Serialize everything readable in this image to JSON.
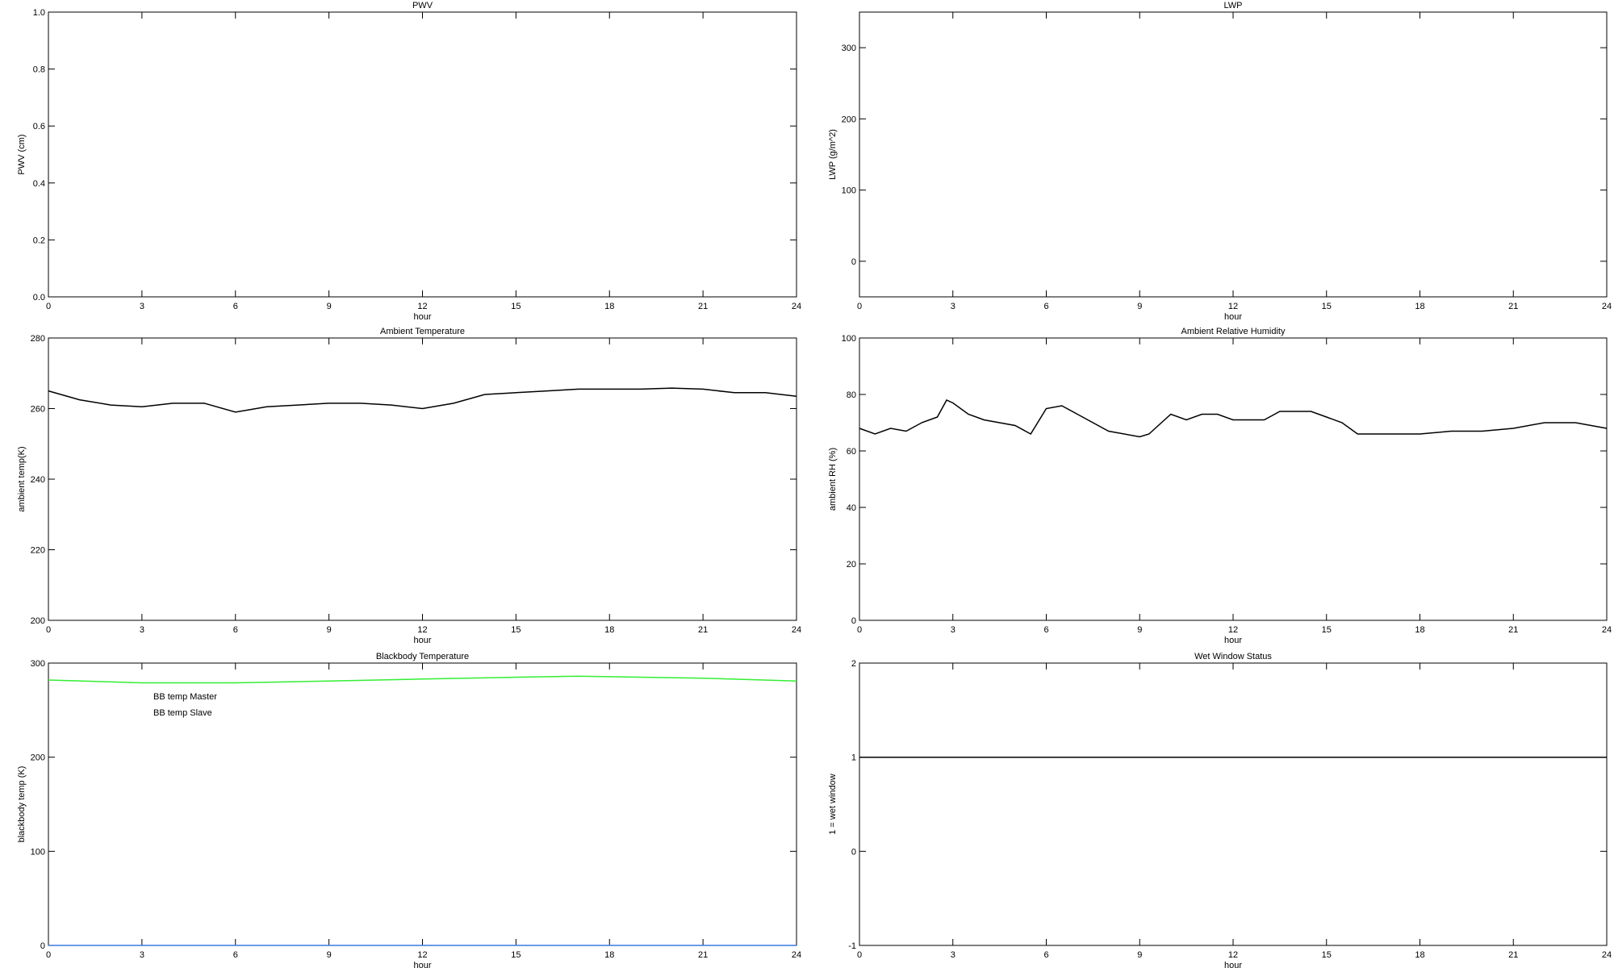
{
  "chart_data": [
    {
      "type": "line",
      "title": "PWV",
      "xlabel": "hour",
      "ylabel": "PWV (cm)",
      "xlim": [
        0,
        24
      ],
      "xticks": [
        0,
        3,
        6,
        9,
        12,
        15,
        18,
        21,
        24
      ],
      "ylim": [
        0,
        1
      ],
      "yticks": [
        {
          "value": 0,
          "label": "0.0"
        },
        0.2,
        0.4,
        0.6,
        0.8,
        {
          "value": 1,
          "label": "1.0"
        }
      ],
      "x": [],
      "series": []
    },
    {
      "type": "line",
      "title": "LWP",
      "xlabel": "hour",
      "ylabel": "LWP (g/m^2)",
      "xlim": [
        0,
        24
      ],
      "xticks": [
        0,
        3,
        6,
        9,
        12,
        15,
        18,
        21,
        24
      ],
      "ylim": [
        -50,
        350
      ],
      "yticks": [
        0,
        100,
        200,
        300
      ],
      "x": [],
      "series": []
    },
    {
      "type": "line",
      "title": "Ambient Temperature",
      "xlabel": "hour",
      "ylabel": "ambient temp(K)",
      "xlim": [
        0,
        24
      ],
      "xticks": [
        0,
        3,
        6,
        9,
        12,
        15,
        18,
        21,
        24
      ],
      "ylim": [
        200,
        280
      ],
      "yticks": [
        200,
        220,
        240,
        260,
        280
      ],
      "x": [
        0,
        1,
        2,
        3,
        4,
        5,
        6,
        7,
        8,
        9,
        10,
        11,
        12,
        13,
        14,
        15,
        16,
        17,
        18,
        19,
        20,
        21,
        22,
        23,
        24
      ],
      "series": [
        {
          "color": "#000000",
          "values": [
            265,
            262.5,
            261,
            260.5,
            261.5,
            261.5,
            259,
            260.5,
            261,
            261.5,
            261.5,
            261,
            260,
            261.5,
            264,
            264.5,
            265,
            265.5,
            265.5,
            265.5,
            265.8,
            265.5,
            264.5,
            264.5,
            263.5
          ]
        }
      ]
    },
    {
      "type": "line",
      "title": "Ambient Relative Humidity",
      "xlabel": "hour",
      "ylabel": "ambient RH (%)",
      "xlim": [
        0,
        24
      ],
      "xticks": [
        0,
        3,
        6,
        9,
        12,
        15,
        18,
        21,
        24
      ],
      "ylim": [
        0,
        100
      ],
      "yticks": [
        0,
        20,
        40,
        60,
        80,
        100
      ],
      "x": [
        0,
        0.5,
        1,
        1.5,
        2,
        2.5,
        2.8,
        3,
        3.5,
        4,
        5,
        5.5,
        6,
        6.5,
        7,
        8,
        9,
        9.3,
        10,
        10.5,
        11,
        11.5,
        12,
        13,
        13.5,
        14.5,
        15,
        15.5,
        16,
        17,
        18,
        19,
        20,
        21,
        22,
        23,
        24
      ],
      "series": [
        {
          "color": "#000000",
          "values": [
            68,
            66,
            68,
            67,
            70,
            72,
            78,
            77,
            73,
            71,
            69,
            66,
            75,
            76,
            73,
            67,
            65,
            66,
            73,
            71,
            73,
            73,
            71,
            71,
            74,
            74,
            72,
            70,
            66,
            66,
            66,
            67,
            67,
            68,
            70,
            70,
            68
          ]
        }
      ]
    },
    {
      "type": "line",
      "title": "Blackbody Temperature",
      "xlabel": "hour",
      "ylabel": "blackbody temp (K)",
      "xlim": [
        0,
        24
      ],
      "xticks": [
        0,
        3,
        6,
        9,
        12,
        15,
        18,
        21,
        24
      ],
      "ylim": [
        0,
        300
      ],
      "yticks": [
        0,
        100,
        200,
        300
      ],
      "legend": "upper left",
      "x": [
        0,
        3,
        6,
        9,
        12,
        15,
        17,
        21,
        24
      ],
      "series": [
        {
          "name": "BB temp Master",
          "color": "#3a7be0",
          "values": [
            0,
            0,
            0,
            0,
            0,
            0,
            0,
            0,
            0
          ]
        },
        {
          "name": "BB temp Slave",
          "color": "#33ee33",
          "values": [
            282,
            279,
            279,
            281,
            283,
            285,
            286,
            284,
            281
          ]
        }
      ]
    },
    {
      "type": "line",
      "title": "Wet Window Status",
      "xlabel": "hour",
      "ylabel": "1 = wet window",
      "xlim": [
        0,
        24
      ],
      "xticks": [
        0,
        3,
        6,
        9,
        12,
        15,
        18,
        21,
        24
      ],
      "ylim": [
        -1,
        2
      ],
      "yticks": [
        -1,
        0,
        1,
        2
      ],
      "x": [
        0,
        24
      ],
      "series": [
        {
          "color": "#000000",
          "values": [
            1,
            1
          ]
        }
      ]
    }
  ]
}
